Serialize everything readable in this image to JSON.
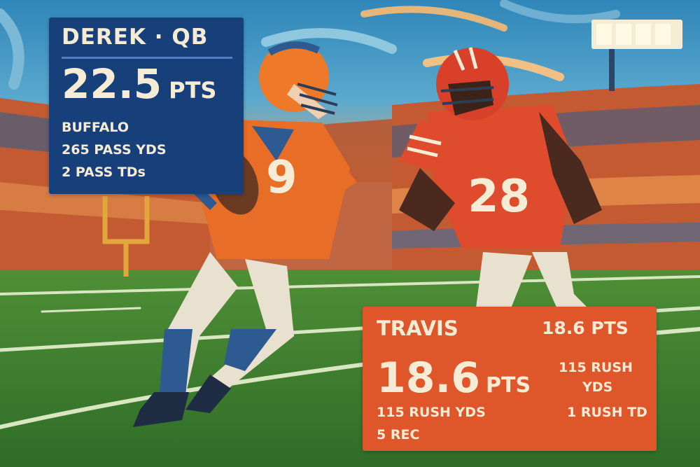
{
  "derek": {
    "title": "DEREK · QB",
    "points_value": "22.5",
    "points_unit": "PTS",
    "stats": [
      "BUFFALO",
      "265 PASS YDS",
      "2 PASS TDs"
    ],
    "jersey_number": "9",
    "card_color": "#17407a"
  },
  "travis": {
    "name": "TRAVIS",
    "points_value": "18.6",
    "points_unit": "PTS",
    "stats": [
      "115 RUSH YDS",
      "5 REC"
    ],
    "header_points": "18.6 PTS",
    "side_stats": [
      "115 RUSH",
      "YDS",
      "1 RUSH TD"
    ],
    "jersey_number": "28",
    "card_color": "#e0562b"
  }
}
